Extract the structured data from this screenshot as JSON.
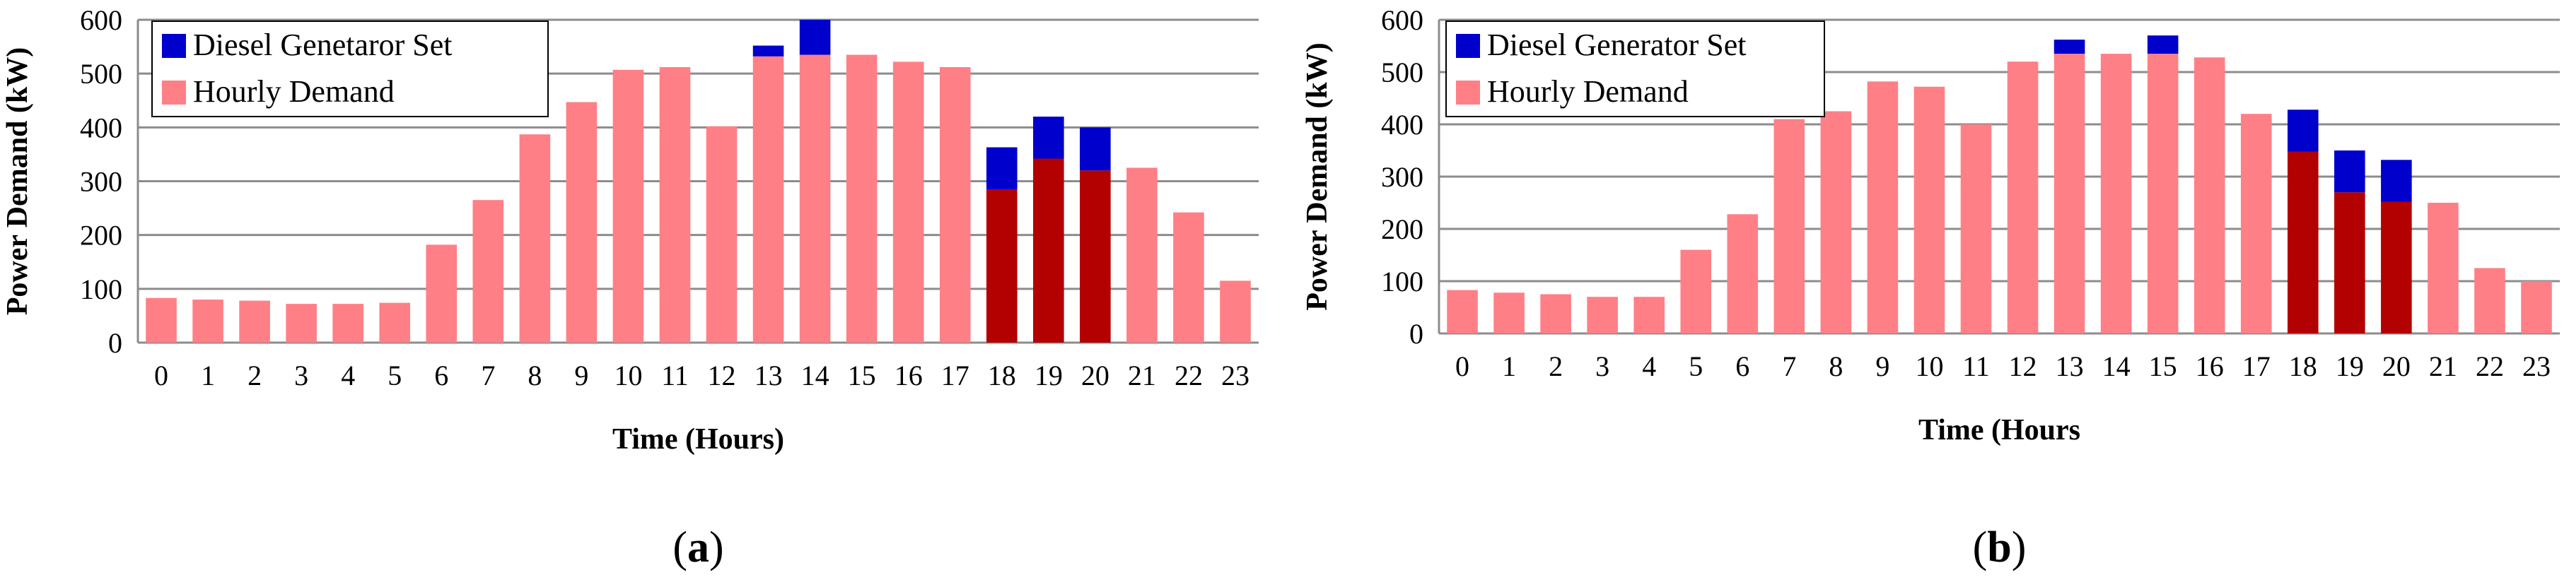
{
  "colors": {
    "diesel": "#0000cc",
    "demand": "#ff7f86",
    "demand_dark": "#b30000",
    "grid": "#8c8c8c",
    "axis": "#8c8c8c"
  },
  "chart_data": [
    {
      "type": "bar",
      "stacked": true,
      "panel_label": "a",
      "xlabel": "Time (Hours)",
      "ylabel": "Power Demand (kW)",
      "ylim": [
        0,
        600
      ],
      "yticks": [
        "0",
        "100",
        "200",
        "300",
        "400",
        "500",
        "600"
      ],
      "grid": true,
      "legend_position": "top-left",
      "categories": [
        "0",
        "1",
        "2",
        "3",
        "4",
        "5",
        "6",
        "7",
        "8",
        "9",
        "10",
        "11",
        "12",
        "13",
        "14",
        "15",
        "16",
        "17",
        "18",
        "19",
        "20",
        "21",
        "22",
        "23"
      ],
      "dark_demand_categories": [
        "18",
        "19",
        "20"
      ],
      "series": [
        {
          "name": "Hourly Demand",
          "values": [
            83,
            80,
            78,
            72,
            72,
            74,
            182,
            265,
            387,
            447,
            507,
            512,
            402,
            532,
            535,
            535,
            522,
            512,
            285,
            342,
            320,
            325,
            242,
            115
          ]
        },
        {
          "name": "Diesel Genetaror Set",
          "values": [
            0,
            0,
            0,
            0,
            0,
            0,
            0,
            0,
            0,
            0,
            0,
            0,
            0,
            20,
            65,
            0,
            0,
            0,
            78,
            78,
            80,
            0,
            0,
            0
          ]
        }
      ]
    },
    {
      "type": "bar",
      "stacked": true,
      "panel_label": "b",
      "xlabel": "Time (Hours",
      "ylabel": "Power Demand (kW)",
      "ylim": [
        0,
        600
      ],
      "yticks": [
        "0",
        "100",
        "200",
        "300",
        "400",
        "500",
        "600"
      ],
      "grid": true,
      "legend_position": "top-left",
      "categories": [
        "0",
        "1",
        "2",
        "3",
        "4",
        "5",
        "6",
        "7",
        "8",
        "9",
        "10",
        "11",
        "12",
        "13",
        "14",
        "15",
        "16",
        "17",
        "18",
        "19",
        "20",
        "21",
        "22",
        "23"
      ],
      "dark_demand_categories": [
        "18",
        "19",
        "20"
      ],
      "series": [
        {
          "name": "Hourly Demand",
          "values": [
            83,
            78,
            75,
            70,
            70,
            160,
            228,
            410,
            425,
            482,
            472,
            400,
            520,
            535,
            535,
            535,
            528,
            420,
            348,
            270,
            252,
            250,
            125,
            100
          ]
        },
        {
          "name": "Diesel Generator Set",
          "values": [
            0,
            0,
            0,
            0,
            0,
            0,
            0,
            0,
            0,
            0,
            0,
            0,
            0,
            27,
            0,
            35,
            0,
            0,
            80,
            80,
            80,
            0,
            0,
            0
          ]
        }
      ]
    }
  ]
}
